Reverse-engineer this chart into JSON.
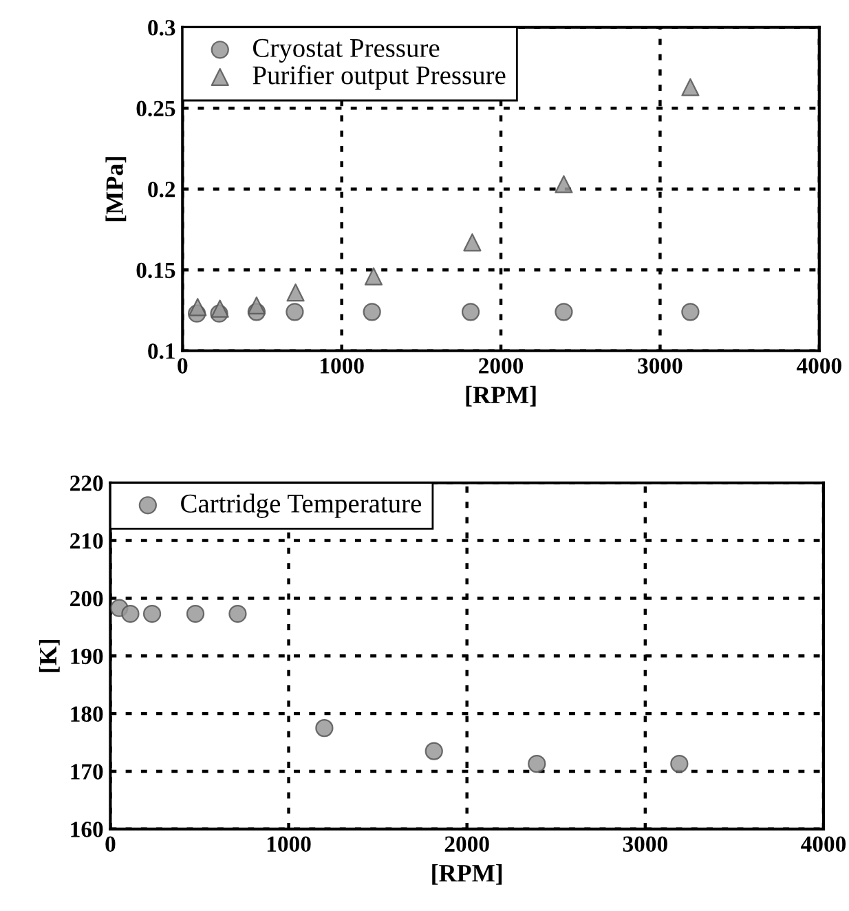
{
  "chart_data": [
    {
      "type": "scatter",
      "xlabel": "[RPM]",
      "ylabel": "[MPa]",
      "xlim": [
        0,
        4000
      ],
      "ylim": [
        0.1,
        0.3
      ],
      "xticks": [
        0,
        1000,
        2000,
        3000,
        4000
      ],
      "yticks": [
        0.1,
        0.15,
        0.2,
        0.25,
        0.3
      ],
      "grid": true,
      "legend": "top left",
      "series": [
        {
          "name": "Cryostat Pressure",
          "color": "#999999",
          "marker": "circle",
          "x": [
            90,
            230,
            465,
            705,
            1190,
            1810,
            2395,
            3190
          ],
          "values": [
            0.123,
            0.123,
            0.124,
            0.124,
            0.124,
            0.124,
            0.124,
            0.124
          ]
        },
        {
          "name": "Purifier output Pressure",
          "color": "#999999",
          "marker": "triangle",
          "x": [
            95,
            235,
            465,
            710,
            1200,
            1820,
            2395,
            3190
          ],
          "values": [
            0.127,
            0.126,
            0.128,
            0.136,
            0.146,
            0.167,
            0.203,
            0.263
          ]
        }
      ]
    },
    {
      "type": "scatter",
      "xlabel": "[RPM]",
      "ylabel": "[K]",
      "xlim": [
        0,
        4000
      ],
      "ylim": [
        160,
        220
      ],
      "xticks": [
        0,
        1000,
        2000,
        3000,
        4000
      ],
      "yticks": [
        160,
        170,
        180,
        190,
        200,
        210,
        220
      ],
      "grid": true,
      "legend": "top left",
      "series": [
        {
          "name": "Cartridge Temperature",
          "color": "#999999",
          "marker": "circle",
          "x": [
            50,
            112,
            234,
            477,
            714,
            1200,
            1815,
            2392,
            3191
          ],
          "values": [
            198.3,
            197.3,
            197.3,
            197.3,
            197.3,
            177.5,
            173.5,
            171.3,
            171.3
          ]
        }
      ]
    }
  ]
}
